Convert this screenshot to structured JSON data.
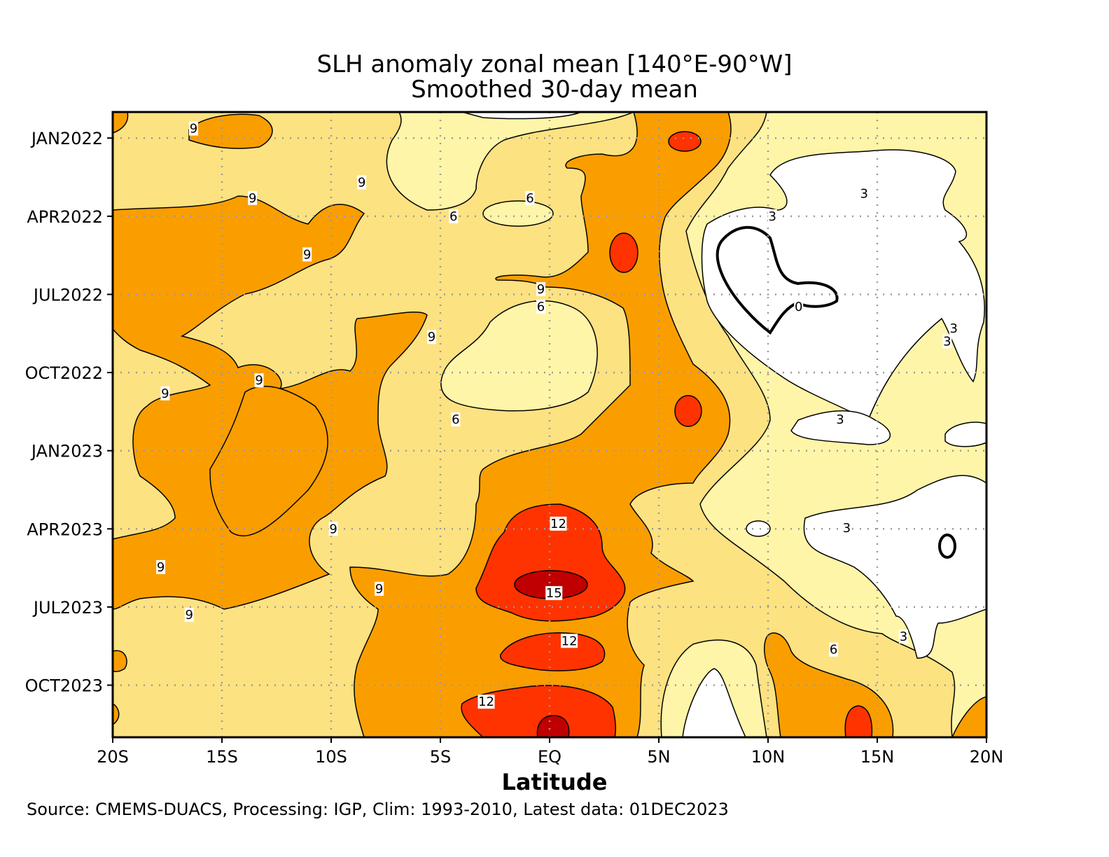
{
  "chart_data": {
    "type": "heatmap",
    "title": "SLH anomaly zonal mean [140°E-90°W]",
    "subtitle": "Smoothed 30-day mean",
    "xlabel": "Latitude",
    "source": "Source: CMEMS-DUACS, Processing: IGP, Clim: 1993-2010, Latest data: 01DEC2023",
    "x_ticks": [
      "20S",
      "15S",
      "10S",
      "5S",
      "EQ",
      "5N",
      "10N",
      "15N",
      "20N"
    ],
    "x_tick_values": [
      -20,
      -15,
      -10,
      -5,
      0,
      5,
      10,
      15,
      20
    ],
    "xlim": [
      -20,
      20
    ],
    "y_ticks": [
      "JAN2022",
      "APR2022",
      "JUL2022",
      "OCT2022",
      "JAN2023",
      "APR2023",
      "JUL2023",
      "OCT2023"
    ],
    "ylim": [
      "2021-12",
      "2023-12"
    ],
    "grid": true,
    "contour_levels": [
      0,
      3,
      6,
      9,
      12,
      15
    ],
    "fill_colors": {
      "below_3": "#ffffff",
      "3_to_6": "#fff5a8",
      "6_to_9": "#fde282",
      "9_to_12": "#fa9e00",
      "12_to_15": "#ff3300",
      "above_15": "#c00000"
    },
    "contour_labels": [
      {
        "text": "9",
        "lat": -16.3,
        "date": "2021-12-20"
      },
      {
        "text": "9",
        "lat": -8.6,
        "date": "2022-02-22"
      },
      {
        "text": "9",
        "lat": -13.6,
        "date": "2022-03-10"
      },
      {
        "text": "6",
        "lat": -0.9,
        "date": "2022-03-10"
      },
      {
        "text": "6",
        "lat": -4.4,
        "date": "2022-04-01"
      },
      {
        "text": "9",
        "lat": -11.1,
        "date": "2022-05-15"
      },
      {
        "text": "9",
        "lat": -0.4,
        "date": "2022-06-25"
      },
      {
        "text": "6",
        "lat": -0.4,
        "date": "2022-07-15"
      },
      {
        "text": "9",
        "lat": -5.4,
        "date": "2022-08-20"
      },
      {
        "text": "9",
        "lat": -13.3,
        "date": "2022-10-10"
      },
      {
        "text": "9",
        "lat": -17.6,
        "date": "2022-10-25"
      },
      {
        "text": "6",
        "lat": -4.3,
        "date": "2022-11-25"
      },
      {
        "text": "12",
        "lat": 0.4,
        "date": "2023-03-25"
      },
      {
        "text": "9",
        "lat": -9.9,
        "date": "2023-04-01"
      },
      {
        "text": "9",
        "lat": -17.8,
        "date": "2023-05-15"
      },
      {
        "text": "15",
        "lat": 0.2,
        "date": "2023-06-15"
      },
      {
        "text": "9",
        "lat": -7.8,
        "date": "2023-06-10"
      },
      {
        "text": "9",
        "lat": -16.5,
        "date": "2023-07-10"
      },
      {
        "text": "12",
        "lat": 0.9,
        "date": "2023-08-10"
      },
      {
        "text": "12",
        "lat": -2.9,
        "date": "2023-10-20"
      },
      {
        "text": "3",
        "lat": 10.2,
        "date": "2022-04-01"
      },
      {
        "text": "3",
        "lat": 14.4,
        "date": "2022-03-05"
      },
      {
        "text": "0",
        "lat": 11.4,
        "date": "2022-07-15"
      },
      {
        "text": "3",
        "lat": 18.5,
        "date": "2022-08-10"
      },
      {
        "text": "3",
        "lat": 18.2,
        "date": "2022-08-25"
      },
      {
        "text": "3",
        "lat": 13.3,
        "date": "2022-11-25"
      },
      {
        "text": "3",
        "lat": 13.6,
        "date": "2023-03-30"
      },
      {
        "text": "6",
        "lat": 13.0,
        "date": "2023-08-20"
      },
      {
        "text": "3",
        "lat": 16.2,
        "date": "2023-08-05"
      }
    ]
  }
}
